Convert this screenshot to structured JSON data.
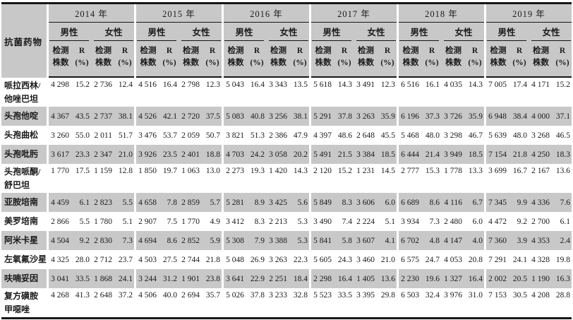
{
  "colors": {
    "stripe_gray": "#c8c8c8",
    "rule_black": "#161616",
    "text": "#1a1a1a",
    "background": "#ffffff"
  },
  "table": {
    "row_header_label": "抗菌药物",
    "years": [
      "2014 年",
      "2015 年",
      "2016 年",
      "2017 年",
      "2018 年",
      "2019 年"
    ],
    "genders": [
      "男性",
      "女性"
    ],
    "sub_header": {
      "count_line1": "检测",
      "count_line2": "株数",
      "r_line1": "R",
      "r_line2": "(%)"
    },
    "rows": [
      {
        "drug": "哌拉西林/他唑巴坦",
        "drug_lines": [
          "哌拉西林/",
          "他唑巴坦"
        ],
        "values": [
          "4 298",
          "15.2",
          "2 736",
          "12.4",
          "4 516",
          "16.4",
          "2 798",
          "12.3",
          "5 043",
          "16.4",
          "3 343",
          "13.5",
          "5 618",
          "14.3",
          "3 491",
          "12.3",
          "6 516",
          "16.1",
          "4 035",
          "14.3",
          "7 005",
          "17.4",
          "4 171",
          "15.2"
        ]
      },
      {
        "drug": "头孢他啶",
        "drug_lines": [
          "头孢他啶"
        ],
        "values": [
          "4 367",
          "43.5",
          "2 737",
          "38.1",
          "4 526",
          "42.1",
          "2 720",
          "37.5",
          "5 083",
          "40.8",
          "3 256",
          "38.1",
          "5 291",
          "37.8",
          "3 263",
          "35.9",
          "6 196",
          "37.3",
          "3 726",
          "35.9",
          "6 948",
          "38.4",
          "4 000",
          "37.1"
        ]
      },
      {
        "drug": "头孢曲松",
        "drug_lines": [
          "头孢曲松"
        ],
        "values": [
          "3 260",
          "55.0",
          "2 011",
          "51.7",
          "3 476",
          "53.7",
          "2 059",
          "50.7",
          "3 821",
          "51.3",
          "2 386",
          "47.9",
          "4 397",
          "48.6",
          "2 648",
          "45.5",
          "5 468",
          "48.0",
          "3 298",
          "46.7",
          "5 639",
          "48.0",
          "3 268",
          "46.5"
        ]
      },
      {
        "drug": "头孢吡肟",
        "drug_lines": [
          "头孢吡肟"
        ],
        "values": [
          "3 617",
          "23.3",
          "2 347",
          "21.0",
          "3 926",
          "23.5",
          "2 401",
          "18.8",
          "4 703",
          "24.2",
          "3 058",
          "20.2",
          "5 491",
          "21.5",
          "3 384",
          "18.5",
          "6 444",
          "21.4",
          "3 949",
          "18.5",
          "7 154",
          "21.8",
          "4 250",
          "18.3"
        ]
      },
      {
        "drug": "头孢哌酮/舒巴坦",
        "drug_lines": [
          "头孢哌酮/",
          "舒巴坦"
        ],
        "values": [
          "1 770",
          "17.5",
          "1 159",
          "12.8",
          "1 850",
          "19.7",
          "1 063",
          "13.0",
          "2 273",
          "19.3",
          "1 420",
          "14.3",
          "2 120",
          "15.2",
          "1 231",
          "14.5",
          "2 777",
          "15.3",
          "1 778",
          "13.3",
          "3 699",
          "16.7",
          "2 167",
          "13.6"
        ]
      },
      {
        "drug": "亚胺培南",
        "drug_lines": [
          "亚胺培南"
        ],
        "values": [
          "4 459",
          "6.1",
          "2 823",
          "5.5",
          "4 658",
          "7.8",
          "2 859",
          "5.7",
          "5 281",
          "8.9",
          "3 425",
          "5.6",
          "5 849",
          "8.3",
          "3 606",
          "6.0",
          "6 689",
          "8.6",
          "4 116",
          "6.7",
          "7 345",
          "9.9",
          "4 336",
          "7.6"
        ]
      },
      {
        "drug": "美罗培南",
        "drug_lines": [
          "美罗培南"
        ],
        "values": [
          "2 866",
          "5.5",
          "1 780",
          "5.1",
          "2 907",
          "7.5",
          "1 770",
          "4.9",
          "3 412",
          "8.3",
          "2 213",
          "5.3",
          "3 490",
          "7.4",
          "2 224",
          "5.1",
          "3 934",
          "7.3",
          "2 480",
          "6.0",
          "4 472",
          "9.2",
          "2 700",
          "6.1"
        ]
      },
      {
        "drug": "阿米卡星",
        "drug_lines": [
          "阿米卡星"
        ],
        "values": [
          "4 504",
          "9.2",
          "2 830",
          "7.3",
          "4 694",
          "8.6",
          "2 852",
          "5.9",
          "5 308",
          "7.9",
          "3 388",
          "5.3",
          "5 841",
          "5.8",
          "3 607",
          "4.1",
          "6 702",
          "4.8",
          "4 147",
          "4.0",
          "7 360",
          "3.9",
          "4 353",
          "2.4"
        ]
      },
      {
        "drug": "左氧氟沙星",
        "drug_lines": [
          "左氧氟沙星"
        ],
        "values": [
          "4 325",
          "28.0",
          "2 712",
          "23.7",
          "4 503",
          "27.5",
          "2 744",
          "21.8",
          "5 048",
          "26.9",
          "3 263",
          "22.3",
          "5 605",
          "24.3",
          "3 460",
          "21.0",
          "6 575",
          "24.7",
          "4 053",
          "20.8",
          "7 291",
          "24.1",
          "4 328",
          "19.8"
        ]
      },
      {
        "drug": "呋喃妥因",
        "drug_lines": [
          "呋喃妥因"
        ],
        "values": [
          "3 041",
          "33.5",
          "1 868",
          "24.1",
          "3 244",
          "31.2",
          "1 901",
          "23.8",
          "3 641",
          "22.9",
          "2 251",
          "18.4",
          "2 298",
          "16.4",
          "1 405",
          "13.6",
          "2 230",
          "19.6",
          "1 327",
          "16.4",
          "2 002",
          "20.5",
          "1 190",
          "16.3"
        ]
      },
      {
        "drug": "复方磺胺甲噁唑",
        "drug_lines": [
          "复方磺胺",
          "甲噁唑"
        ],
        "values": [
          "4 268",
          "41.3",
          "2 648",
          "37.2",
          "4 506",
          "40.0",
          "2 694",
          "35.7",
          "5 026",
          "37.8",
          "3 233",
          "32.8",
          "5 523",
          "33.5",
          "3 395",
          "29.8",
          "6 503",
          "32.4",
          "3 976",
          "31.0",
          "7 153",
          "30.5",
          "4 208",
          "28.8"
        ]
      }
    ]
  }
}
